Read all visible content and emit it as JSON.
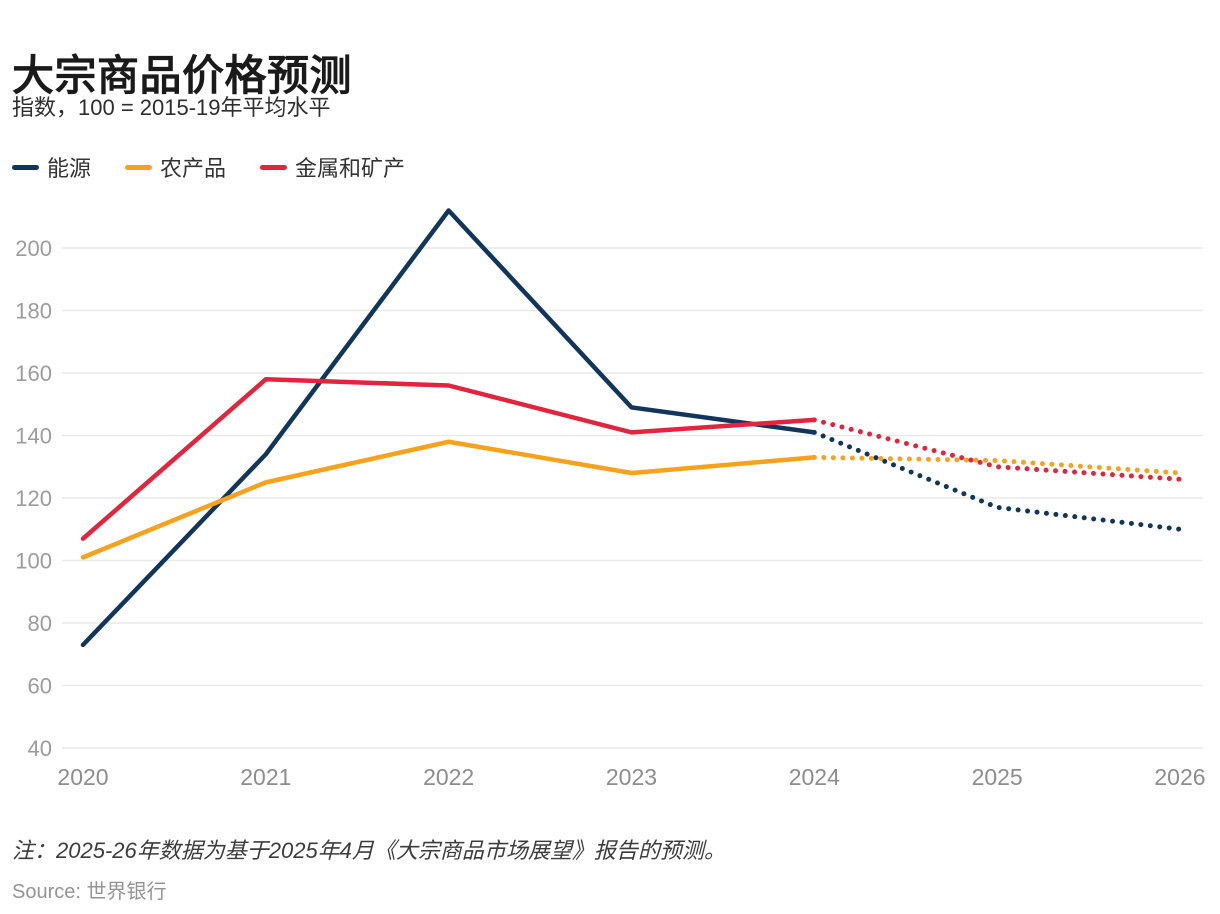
{
  "header": {
    "title": "大宗商品价格预测",
    "subtitle": "指数，100 = 2015-19年平均水平"
  },
  "chart_data": {
    "type": "line",
    "title": "大宗商品价格预测",
    "subtitle": "指数，100 = 2015-19年平均水平",
    "x": [
      2020,
      2021,
      2022,
      2023,
      2024,
      2025,
      2026
    ],
    "yticks": [
      40,
      60,
      80,
      100,
      120,
      140,
      160,
      180,
      200
    ],
    "ylim": [
      40,
      215
    ],
    "grid": "horizontal",
    "legend_position": "top-left",
    "forecast_start_index": 4,
    "forecast_style": "dotted",
    "series": [
      {
        "id": "energy",
        "name": "能源",
        "color": "#12355B",
        "values": [
          73,
          134,
          212,
          149,
          141,
          117,
          110
        ]
      },
      {
        "id": "agriculture",
        "name": "农产品",
        "color": "#F8A11C",
        "values": [
          101,
          125,
          138,
          128,
          133,
          132,
          128
        ]
      },
      {
        "id": "metals",
        "name": "金属和矿产",
        "color": "#E2243F",
        "values": [
          107,
          158,
          156,
          141,
          145,
          130,
          126
        ]
      }
    ],
    "colors": {
      "gridline": "#e9e9e9",
      "y_tick_label": "#9c9c9c",
      "x_tick_label": "#8d8d8d"
    }
  },
  "footer": {
    "note": "注：2025-26年数据为基于2025年4月《大宗商品市场展望》报告的预测。",
    "source": "Source: 世界银行"
  }
}
